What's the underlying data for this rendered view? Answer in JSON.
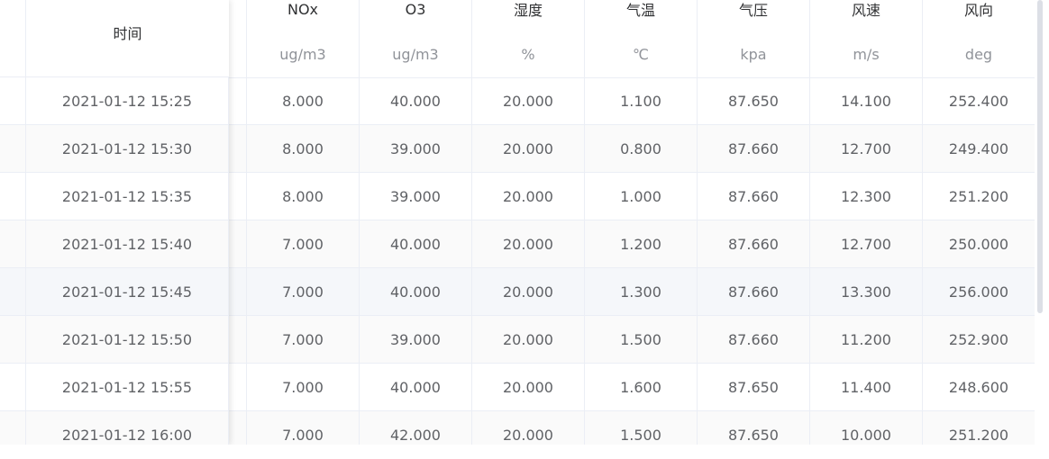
{
  "header": {
    "time_label": "时间",
    "columns": [
      {
        "name": "NOx",
        "unit": "ug/m3"
      },
      {
        "name": "O3",
        "unit": "ug/m3"
      },
      {
        "name": "湿度",
        "unit": "%"
      },
      {
        "name": "气温",
        "unit": "℃"
      },
      {
        "name": "气压",
        "unit": "kpa"
      },
      {
        "name": "风速",
        "unit": "m/s"
      },
      {
        "name": "风向",
        "unit": "deg"
      }
    ]
  },
  "rows": [
    {
      "time": "2021-01-12 15:25",
      "values": [
        "8.000",
        "40.000",
        "20.000",
        "1.100",
        "87.650",
        "14.100",
        "252.400"
      ]
    },
    {
      "time": "2021-01-12 15:30",
      "values": [
        "8.000",
        "39.000",
        "20.000",
        "0.800",
        "87.660",
        "12.700",
        "249.400"
      ]
    },
    {
      "time": "2021-01-12 15:35",
      "values": [
        "8.000",
        "39.000",
        "20.000",
        "1.000",
        "87.660",
        "12.300",
        "251.200"
      ]
    },
    {
      "time": "2021-01-12 15:40",
      "values": [
        "7.000",
        "40.000",
        "20.000",
        "1.200",
        "87.660",
        "12.700",
        "250.000"
      ]
    },
    {
      "time": "2021-01-12 15:45",
      "values": [
        "7.000",
        "40.000",
        "20.000",
        "1.300",
        "87.660",
        "13.300",
        "256.000"
      ]
    },
    {
      "time": "2021-01-12 15:50",
      "values": [
        "7.000",
        "39.000",
        "20.000",
        "1.500",
        "87.660",
        "11.200",
        "252.900"
      ]
    },
    {
      "time": "2021-01-12 15:55",
      "values": [
        "7.000",
        "40.000",
        "20.000",
        "1.600",
        "87.650",
        "11.400",
        "248.600"
      ]
    },
    {
      "time": "2021-01-12 16:00",
      "values": [
        "7.000",
        "42.000",
        "20.000",
        "1.500",
        "87.650",
        "10.000",
        "251.200"
      ]
    }
  ],
  "colors": {
    "border": "#ebeef5",
    "stripe": "#fafafa",
    "hover": "#f5f7fa",
    "text": "#606266",
    "header_text": "#303133",
    "unit_text": "#909399"
  },
  "hover_row": 4
}
